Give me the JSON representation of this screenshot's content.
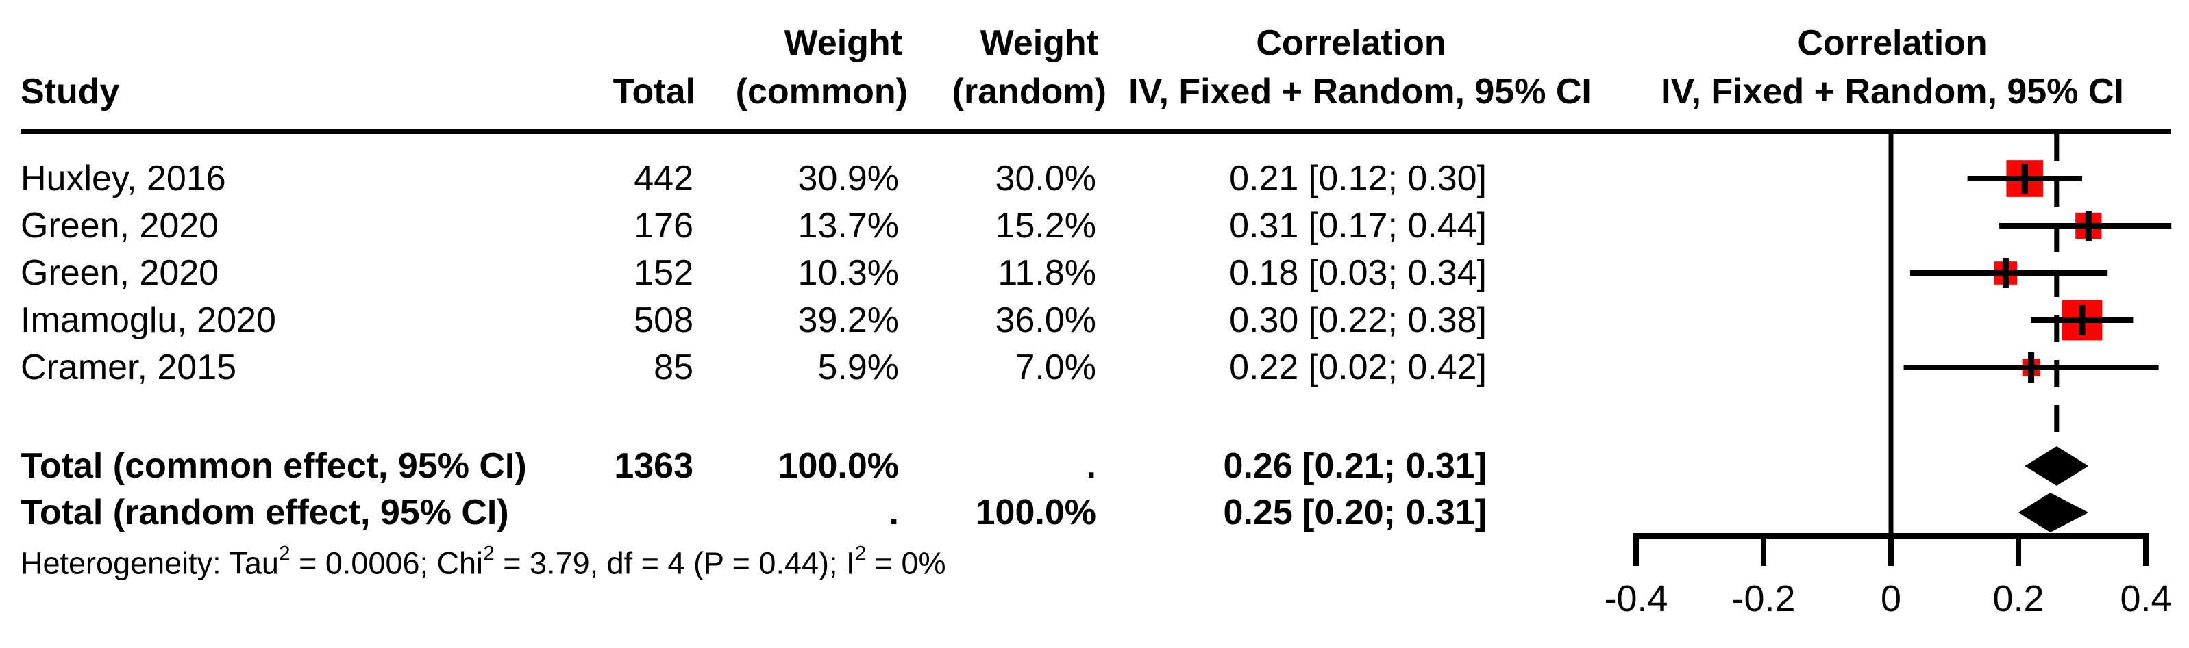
{
  "colors": {
    "marker_red": "#fb0404",
    "ink": "#000000",
    "background": "#ffffff"
  },
  "chart_data": {
    "type": "forest",
    "columns": {
      "study": "Study",
      "total": "Total",
      "weight": "Weight",
      "common": "(common)",
      "random": "(random)",
      "effect": "Correlation",
      "method": "IV, Fixed + Random, 95% CI"
    },
    "x_axis": {
      "ticks": [
        -0.4,
        -0.2,
        0,
        0.2,
        0.4
      ],
      "labels": [
        "-0.4",
        "-0.2",
        "0",
        "0.2",
        "0.4"
      ],
      "range": [
        -0.4,
        0.44
      ]
    },
    "null_line": 0,
    "pooled_ref_line": 0.26,
    "studies": [
      {
        "name": "Huxley, 2016",
        "total": "442",
        "weight_common": "30.9%",
        "weight_random": "30.0%",
        "est": 0.21,
        "ci_low": 0.12,
        "ci_high": 0.3,
        "ci_label": "0.21 [0.12; 0.30]"
      },
      {
        "name": "Green, 2020",
        "total": "176",
        "weight_common": "13.7%",
        "weight_random": "15.2%",
        "est": 0.31,
        "ci_low": 0.17,
        "ci_high": 0.44,
        "ci_label": "0.31 [0.17; 0.44]"
      },
      {
        "name": "Green, 2020",
        "total": "152",
        "weight_common": "10.3%",
        "weight_random": "11.8%",
        "est": 0.18,
        "ci_low": 0.03,
        "ci_high": 0.34,
        "ci_label": "0.18 [0.03; 0.34]"
      },
      {
        "name": "Imamoglu, 2020",
        "total": "508",
        "weight_common": "39.2%",
        "weight_random": "36.0%",
        "est": 0.3,
        "ci_low": 0.22,
        "ci_high": 0.38,
        "ci_label": "0.30 [0.22; 0.38]"
      },
      {
        "name": "Cramer, 2015",
        "total": "85",
        "weight_common": "5.9%",
        "weight_random": "7.0%",
        "est": 0.22,
        "ci_low": 0.02,
        "ci_high": 0.42,
        "ci_label": "0.22 [0.02; 0.42]"
      }
    ],
    "totals": [
      {
        "label": "Total (common effect, 95% CI)",
        "total": "1363",
        "weight_common": "100.0%",
        "weight_random": ".",
        "est": 0.26,
        "ci_low": 0.21,
        "ci_high": 0.31,
        "ci_label": "0.26 [0.21; 0.31]"
      },
      {
        "label": "Total (random effect, 95% CI)",
        "total": "",
        "weight_common": ".",
        "weight_random": "100.0%",
        "est": 0.25,
        "ci_low": 0.2,
        "ci_high": 0.31,
        "ci_label": "0.25 [0.20; 0.31]"
      }
    ],
    "heterogeneity_parts": [
      {
        "text": "Heterogeneity: Tau"
      },
      {
        "sup": "2"
      },
      {
        "text": " = 0.0006; Chi"
      },
      {
        "sup": "2"
      },
      {
        "text": " = 3.79, df = 4 (P = 0.44); I"
      },
      {
        "sup": "2"
      },
      {
        "text": " = 0%"
      }
    ]
  }
}
